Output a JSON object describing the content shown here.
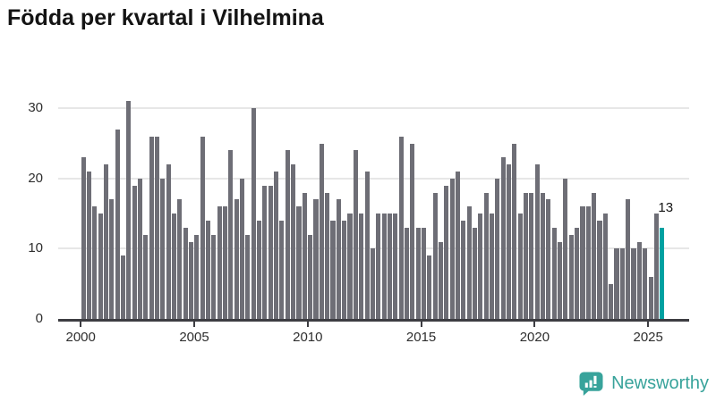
{
  "title": "Födda per kvartal i Vilhelmina",
  "chart_data": {
    "type": "bar",
    "title": "Födda per kvartal i Vilhelmina",
    "xlabel": "",
    "ylabel": "",
    "x_start": "2000-Q1",
    "x_end": "2025-Q3",
    "x_tick_labels": [
      "2000",
      "2005",
      "2010",
      "2015",
      "2020",
      "2025"
    ],
    "y_ticks": [
      0,
      10,
      20,
      30
    ],
    "ylim": [
      0,
      32
    ],
    "grid": "horizontal",
    "legend": "none",
    "bar_color": "#6e6e76",
    "highlight_color": "#00a1a1",
    "series": [
      {
        "name": "Födda per kvartal",
        "values": [
          23,
          21,
          16,
          15,
          22,
          17,
          27,
          9,
          31,
          19,
          20,
          12,
          26,
          26,
          20,
          22,
          15,
          17,
          13,
          11,
          12,
          26,
          14,
          12,
          16,
          16,
          24,
          17,
          20,
          12,
          30,
          14,
          19,
          19,
          21,
          14,
          24,
          22,
          16,
          18,
          12,
          17,
          25,
          18,
          14,
          17,
          14,
          15,
          24,
          15,
          21,
          10,
          15,
          15,
          15,
          15,
          26,
          13,
          25,
          13,
          13,
          9,
          18,
          11,
          19,
          20,
          21,
          14,
          16,
          13,
          15,
          18,
          15,
          20,
          23,
          22,
          25,
          15,
          18,
          18,
          22,
          18,
          17,
          13,
          11,
          20,
          12,
          13,
          16,
          16,
          18,
          14,
          15,
          5,
          10,
          10,
          17,
          10,
          11,
          10,
          6,
          15,
          13
        ]
      }
    ],
    "annotation": {
      "text": "13",
      "applies_to": "last-bar"
    }
  },
  "branding": {
    "logo_text": "Newsworthy",
    "logo_color": "#38a39b"
  }
}
